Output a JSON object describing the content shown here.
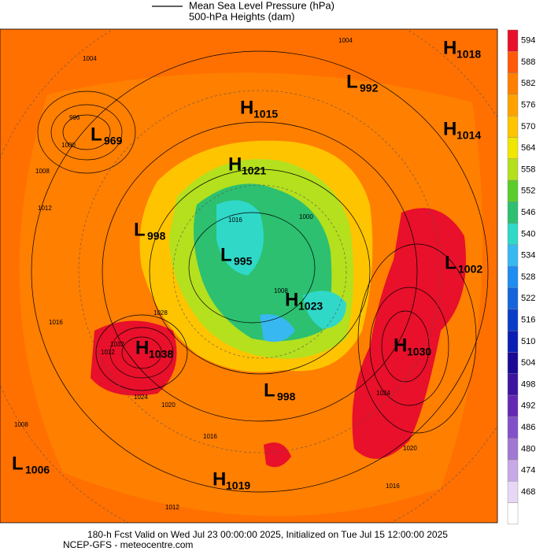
{
  "legend": {
    "line1": "Mean Sea Level Pressure (hPa)",
    "line2": "500-hPa Heights (dam)"
  },
  "pressure_centers": [
    {
      "letter": "H",
      "value": 1018
    },
    {
      "letter": "L",
      "value": 992
    },
    {
      "letter": "H",
      "value": 1015
    },
    {
      "letter": "L",
      "value": 969
    },
    {
      "letter": "H",
      "value": 1014
    },
    {
      "letter": "H",
      "value": 1021
    },
    {
      "letter": "L",
      "value": 998
    },
    {
      "letter": "L",
      "value": 995
    },
    {
      "letter": "H",
      "value": 1023
    },
    {
      "letter": "L",
      "value": 1002
    },
    {
      "letter": "H",
      "value": 1038
    },
    {
      "letter": "H",
      "value": 1030
    },
    {
      "letter": "L",
      "value": 998
    },
    {
      "letter": "L",
      "value": 1006
    },
    {
      "letter": "H",
      "value": 1019
    }
  ],
  "isobar_labels": [
    1004,
    996,
    1004,
    1000,
    1008,
    1012,
    1016,
    1028,
    1032,
    1024,
    1020,
    1012,
    1016,
    1008,
    1016,
    1012,
    1024,
    1020,
    1016,
    1000,
    1008
  ],
  "colorbar": {
    "ticks": [
      594,
      588,
      582,
      576,
      570,
      564,
      558,
      552,
      546,
      540,
      534,
      528,
      522,
      516,
      510,
      504,
      498,
      492,
      486,
      480,
      474,
      468
    ],
    "colors": [
      "#e8102a",
      "#ff5a0a",
      "#ff7f00",
      "#ffa200",
      "#ffc400",
      "#f0e600",
      "#b4e01e",
      "#5ccc2a",
      "#2cc070",
      "#30d8c8",
      "#38b8f0",
      "#1e8cf0",
      "#1464dc",
      "#0a3cc8",
      "#0a1eb4",
      "#1a0a96",
      "#3c14a0",
      "#6428b4",
      "#8250c8",
      "#a078d2",
      "#c8a8e6",
      "#e6d8f5"
    ],
    "bottom_color": "#ffffff"
  },
  "footer": {
    "line1": "180-h Fcst Valid on Wed Jul 23 00:00:00 2025, Initialized on Tue Jul 15 12:00:00 2025",
    "line2": "NCEP-GFS  - meteocentre.com"
  }
}
